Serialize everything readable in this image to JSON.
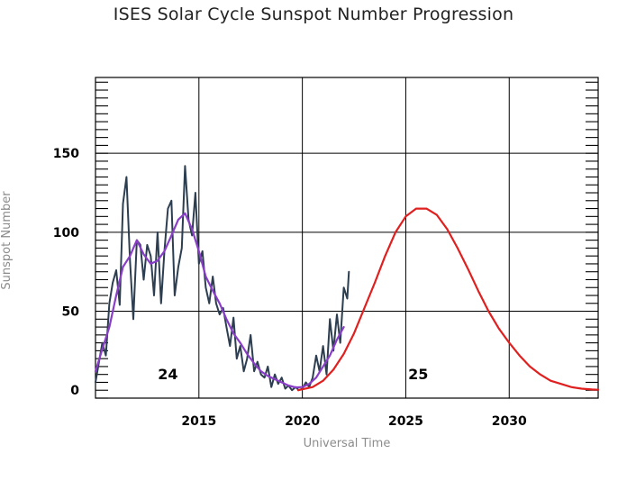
{
  "chart_data": {
    "type": "line",
    "title": "ISES Solar Cycle Sunspot Number Progression",
    "xlabel": "Universal Time",
    "ylabel": "Sunspot Number",
    "xlim": [
      2010.0,
      2034.3
    ],
    "ylim": [
      -5,
      198
    ],
    "x_ticks": [
      {
        "value": 2015,
        "label": "2015"
      },
      {
        "value": 2020,
        "label": "2020"
      },
      {
        "value": 2025,
        "label": "2025"
      },
      {
        "value": 2030,
        "label": "2030"
      }
    ],
    "y_ticks": [
      {
        "value": 0,
        "label": "0"
      },
      {
        "value": 50,
        "label": "50"
      },
      {
        "value": 100,
        "label": "100"
      },
      {
        "value": 150,
        "label": "150"
      }
    ],
    "grid": true,
    "annotations": [
      {
        "text": "24",
        "x": 2013.5,
        "y": 7
      },
      {
        "text": "25",
        "x": 2025.6,
        "y": 7
      }
    ],
    "series": [
      {
        "color": "#2c3e50",
        "x": [
          2010.0,
          2010.17,
          2010.33,
          2010.5,
          2010.67,
          2010.83,
          2011.0,
          2011.17,
          2011.33,
          2011.5,
          2011.67,
          2011.83,
          2012.0,
          2012.17,
          2012.33,
          2012.5,
          2012.67,
          2012.83,
          2013.0,
          2013.17,
          2013.33,
          2013.5,
          2013.67,
          2013.83,
          2014.0,
          2014.17,
          2014.33,
          2014.5,
          2014.67,
          2014.83,
          2015.0,
          2015.17,
          2015.33,
          2015.5,
          2015.67,
          2015.83,
          2016.0,
          2016.17,
          2016.33,
          2016.5,
          2016.67,
          2016.83,
          2017.0,
          2017.17,
          2017.33,
          2017.5,
          2017.67,
          2017.83,
          2018.0,
          2018.17,
          2018.33,
          2018.5,
          2018.67,
          2018.83,
          2019.0,
          2019.17,
          2019.33,
          2019.5,
          2019.67,
          2019.83,
          2020.0,
          2020.17,
          2020.33,
          2020.5,
          2020.67,
          2020.83,
          2021.0,
          2021.17,
          2021.33,
          2021.5,
          2021.67,
          2021.83,
          2022.0,
          2022.17,
          2022.25
        ],
        "y": [
          5,
          18,
          30,
          22,
          55,
          68,
          76,
          54,
          118,
          135,
          82,
          45,
          95,
          92,
          70,
          92,
          85,
          60,
          100,
          55,
          88,
          115,
          120,
          60,
          78,
          90,
          142,
          108,
          98,
          125,
          80,
          88,
          65,
          55,
          72,
          55,
          48,
          52,
          40,
          28,
          46,
          20,
          28,
          12,
          20,
          35,
          12,
          18,
          10,
          8,
          15,
          2,
          10,
          4,
          8,
          1,
          3,
          0,
          2,
          0,
          1,
          5,
          2,
          8,
          22,
          12,
          28,
          10,
          45,
          25,
          48,
          30,
          65,
          58,
          75
        ]
      },
      {
        "color": "#8a3ec8",
        "x": [
          2010.0,
          2010.33,
          2010.67,
          2011.0,
          2011.33,
          2011.67,
          2012.0,
          2012.33,
          2012.67,
          2013.0,
          2013.33,
          2013.67,
          2014.0,
          2014.33,
          2014.67,
          2015.0,
          2015.33,
          2015.67,
          2016.0,
          2016.33,
          2016.67,
          2017.0,
          2017.33,
          2017.67,
          2018.0,
          2018.33,
          2018.67,
          2019.0,
          2019.33,
          2019.67,
          2020.0,
          2020.33,
          2020.67,
          2021.0,
          2021.33,
          2021.67,
          2022.0
        ],
        "y": [
          12,
          26,
          40,
          60,
          78,
          85,
          95,
          86,
          80,
          82,
          88,
          98,
          108,
          112,
          102,
          88,
          72,
          63,
          55,
          45,
          36,
          30,
          23,
          17,
          12,
          9,
          7,
          5,
          3,
          1.8,
          2,
          4,
          8,
          15,
          22,
          32,
          40
        ]
      },
      {
        "color": "#e01f1f",
        "x": [
          2019.8,
          2020.5,
          2021.0,
          2021.5,
          2022.0,
          2022.5,
          2023.0,
          2023.5,
          2024.0,
          2024.5,
          2025.0,
          2025.5,
          2026.0,
          2026.5,
          2027.0,
          2027.5,
          2028.0,
          2028.5,
          2029.0,
          2029.5,
          2030.0,
          2030.5,
          2031.0,
          2031.5,
          2032.0,
          2032.5,
          2033.0,
          2033.5,
          2034.0,
          2034.3
        ],
        "y": [
          0,
          2,
          6,
          13,
          23,
          36,
          52,
          68,
          85,
          100,
          110,
          115,
          115,
          111,
          102,
          90,
          77,
          63,
          50,
          39,
          30,
          22,
          15,
          10,
          6,
          4,
          2,
          1,
          0.5,
          0.3
        ]
      }
    ]
  }
}
